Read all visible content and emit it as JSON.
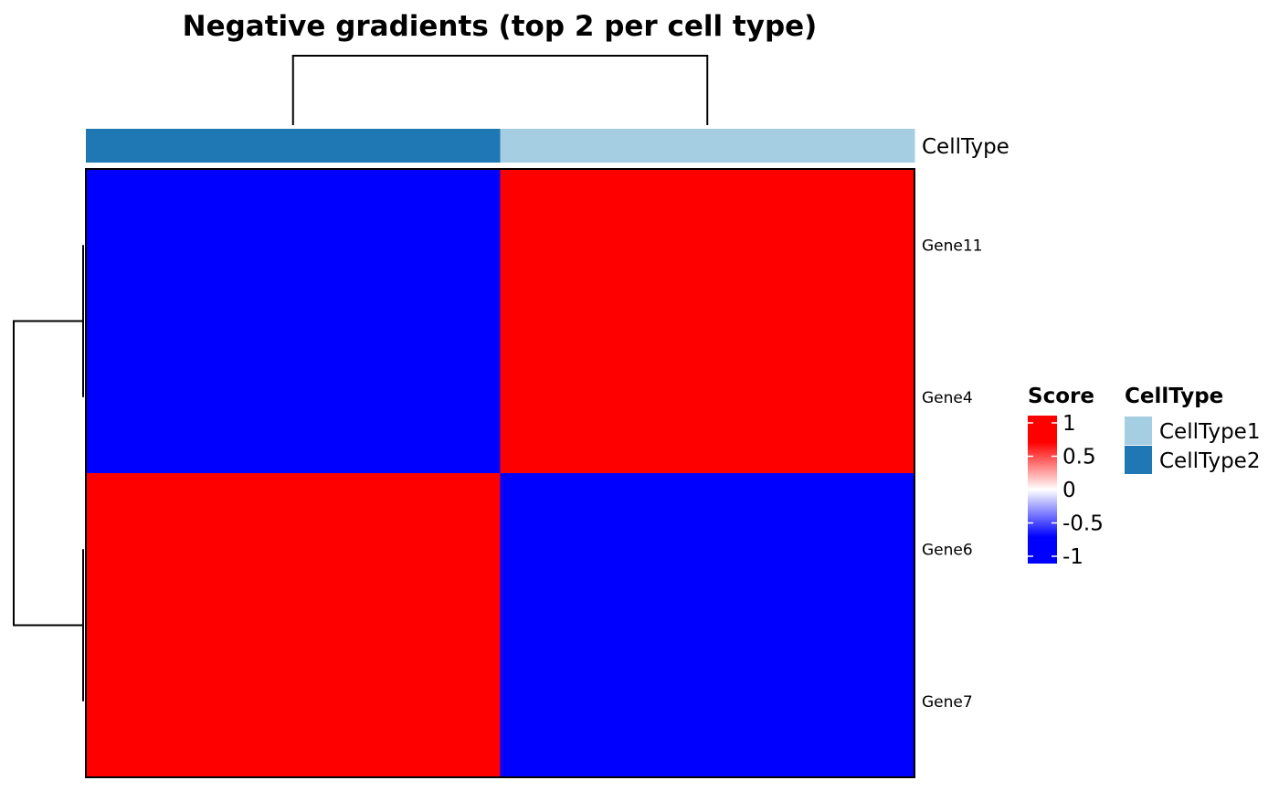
{
  "chart_data": {
    "type": "heatmap",
    "title": "Negative gradients (top 2 per cell type)",
    "rows": [
      "Gene11",
      "Gene4",
      "Gene6",
      "Gene7"
    ],
    "columns": [
      "CellType2",
      "CellType1"
    ],
    "values": [
      [
        -1,
        1
      ],
      [
        -1,
        1
      ],
      [
        1,
        -1
      ],
      [
        1,
        -1
      ]
    ],
    "column_annotation": {
      "name": "CellType",
      "values": [
        "CellType2",
        "CellType1"
      ],
      "colors": {
        "CellType1": "#A6CEE3",
        "CellType2": "#1F78B4"
      }
    },
    "color_scale": {
      "name": "Score",
      "min": -1,
      "max": 1,
      "low": "#0000FF",
      "mid": "#FFFFFF",
      "high": "#FF0000",
      "ticks": [
        "1",
        "0.5",
        "0",
        "-0.5",
        "-1"
      ]
    },
    "legends": {
      "score_title": "Score",
      "celltype_title": "CellType",
      "celltype_items": [
        {
          "label": "CellType1",
          "color": "#A6CEE3"
        },
        {
          "label": "CellType2",
          "color": "#1F78B4"
        }
      ]
    },
    "row_dendrogram": true,
    "column_dendrogram": true
  }
}
